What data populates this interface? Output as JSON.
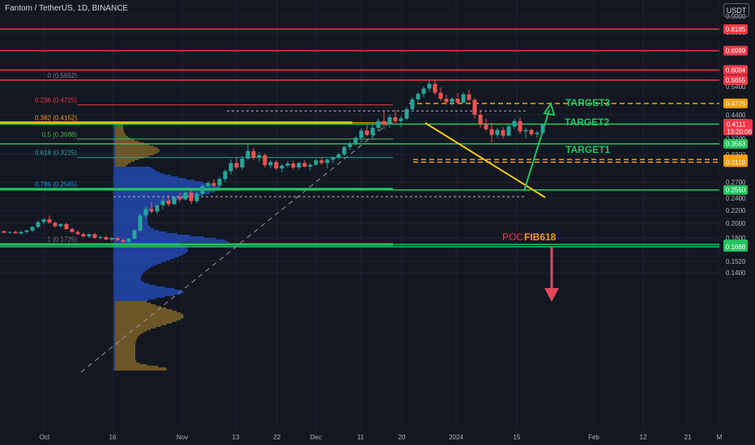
{
  "header": {
    "symbol": "Fantom / TetherUS, 1D, BINANCE",
    "currency": "USDT"
  },
  "chart_data": {
    "type": "candlestick",
    "y_scale": "log",
    "ylim": [
      0.135,
      0.93
    ],
    "y_ticks": [
      0.9,
      0.8,
      0.54,
      0.44,
      0.37,
      0.33,
      0.27,
      0.24,
      0.22,
      0.2,
      0.18,
      0.152,
      0.14
    ],
    "x_ticks": [
      "Oct",
      "16",
      "Nov",
      "13",
      "22",
      "Dec",
      "11",
      "20",
      "2024",
      "15",
      "Feb",
      "12",
      "21",
      "M"
    ],
    "last_price": {
      "value": "0.4111",
      "countdown": "13:20:06",
      "color": "#f23645"
    },
    "horizontal_levels": [
      {
        "value": 0.8185,
        "label": "0.8185",
        "color": "#f23645"
      },
      {
        "value": 0.6999,
        "label": "0.6999",
        "color": "#f23645"
      },
      {
        "value": 0.6084,
        "label": "0.6084",
        "color": "#f23645"
      },
      {
        "value": 0.5655,
        "label": "0.5655",
        "color": "#f23645"
      },
      {
        "value": 0.3563,
        "label": "0.3563",
        "color": "#22c55e"
      },
      {
        "value": 0.255,
        "label": "0.2550",
        "color": "#22c55e"
      },
      {
        "value": 0.1717,
        "label": "0.1717",
        "color": "#22c55e"
      },
      {
        "value": 0.1688,
        "label": "0.1688",
        "color": "#22c55e"
      }
    ],
    "dashed_levels": [
      {
        "value": 0.4775,
        "label": "0.4775",
        "color": "#f59e0b"
      },
      {
        "value": 0.318,
        "label": "0.3180",
        "color": "#f59e0b"
      },
      {
        "value": 0.3119,
        "label": "0.3119",
        "color": "#f59e0b"
      }
    ],
    "green_level": {
      "value": 0.4126,
      "label": "0.4126",
      "color": "#22c55e"
    },
    "fib_levels": [
      {
        "ratio": "0",
        "price": 0.5652,
        "label": "0 (0.5652)",
        "color": "#787b86"
      },
      {
        "ratio": "0.236",
        "price": 0.4725,
        "label": "0.236 (0.4725)",
        "color": "#f23645"
      },
      {
        "ratio": "0.382",
        "price": 0.4152,
        "label": "0.382 (0.4152)",
        "color": "#f59e0b"
      },
      {
        "ratio": "0.5",
        "price": 0.3688,
        "label": "0.5 (0.3688)",
        "color": "#4caf50"
      },
      {
        "ratio": "0.618",
        "price": 0.3225,
        "label": "0.618 (0.3225)",
        "color": "#26a69a"
      },
      {
        "ratio": "0.786",
        "price": 0.2565,
        "label": "0.786 (0.2565)",
        "color": "#2196f3"
      },
      {
        "ratio": "1",
        "price": 0.1725,
        "label": "1 (0.1725)",
        "color": "#787b86"
      }
    ],
    "annotations": {
      "target3": "TARGET3",
      "target2": "TARGET2",
      "target1": "TARGET1",
      "poc": "POC",
      "fib618": "FIB618"
    },
    "candles": [
      {
        "o": 0.188,
        "h": 0.191,
        "l": 0.185,
        "c": 0.189
      },
      {
        "o": 0.189,
        "h": 0.19,
        "l": 0.186,
        "c": 0.187
      },
      {
        "o": 0.187,
        "h": 0.189,
        "l": 0.185,
        "c": 0.188
      },
      {
        "o": 0.188,
        "h": 0.19,
        "l": 0.186,
        "c": 0.186
      },
      {
        "o": 0.186,
        "h": 0.189,
        "l": 0.184,
        "c": 0.188
      },
      {
        "o": 0.188,
        "h": 0.191,
        "l": 0.186,
        "c": 0.19
      },
      {
        "o": 0.19,
        "h": 0.196,
        "l": 0.188,
        "c": 0.195
      },
      {
        "o": 0.195,
        "h": 0.204,
        "l": 0.193,
        "c": 0.202
      },
      {
        "o": 0.202,
        "h": 0.208,
        "l": 0.199,
        "c": 0.206
      },
      {
        "o": 0.206,
        "h": 0.212,
        "l": 0.2,
        "c": 0.201
      },
      {
        "o": 0.201,
        "h": 0.203,
        "l": 0.194,
        "c": 0.196
      },
      {
        "o": 0.196,
        "h": 0.2,
        "l": 0.194,
        "c": 0.199
      },
      {
        "o": 0.199,
        "h": 0.201,
        "l": 0.191,
        "c": 0.192
      },
      {
        "o": 0.192,
        "h": 0.194,
        "l": 0.187,
        "c": 0.188
      },
      {
        "o": 0.188,
        "h": 0.19,
        "l": 0.184,
        "c": 0.185
      },
      {
        "o": 0.185,
        "h": 0.187,
        "l": 0.181,
        "c": 0.182
      },
      {
        "o": 0.182,
        "h": 0.186,
        "l": 0.18,
        "c": 0.185
      },
      {
        "o": 0.185,
        "h": 0.187,
        "l": 0.179,
        "c": 0.18
      },
      {
        "o": 0.18,
        "h": 0.183,
        "l": 0.178,
        "c": 0.181
      },
      {
        "o": 0.181,
        "h": 0.183,
        "l": 0.177,
        "c": 0.178
      },
      {
        "o": 0.178,
        "h": 0.181,
        "l": 0.176,
        "c": 0.18
      },
      {
        "o": 0.18,
        "h": 0.182,
        "l": 0.176,
        "c": 0.177
      },
      {
        "o": 0.177,
        "h": 0.179,
        "l": 0.173,
        "c": 0.175
      },
      {
        "o": 0.175,
        "h": 0.18,
        "l": 0.1725,
        "c": 0.179
      },
      {
        "o": 0.179,
        "h": 0.192,
        "l": 0.178,
        "c": 0.19
      },
      {
        "o": 0.19,
        "h": 0.215,
        "l": 0.188,
        "c": 0.212
      },
      {
        "o": 0.212,
        "h": 0.226,
        "l": 0.208,
        "c": 0.222
      },
      {
        "o": 0.222,
        "h": 0.234,
        "l": 0.215,
        "c": 0.218
      },
      {
        "o": 0.218,
        "h": 0.23,
        "l": 0.214,
        "c": 0.228
      },
      {
        "o": 0.228,
        "h": 0.24,
        "l": 0.222,
        "c": 0.236
      },
      {
        "o": 0.236,
        "h": 0.246,
        "l": 0.226,
        "c": 0.23
      },
      {
        "o": 0.23,
        "h": 0.244,
        "l": 0.228,
        "c": 0.242
      },
      {
        "o": 0.242,
        "h": 0.25,
        "l": 0.234,
        "c": 0.238
      },
      {
        "o": 0.238,
        "h": 0.252,
        "l": 0.236,
        "c": 0.25
      },
      {
        "o": 0.25,
        "h": 0.258,
        "l": 0.23,
        "c": 0.235
      },
      {
        "o": 0.235,
        "h": 0.252,
        "l": 0.232,
        "c": 0.248
      },
      {
        "o": 0.248,
        "h": 0.265,
        "l": 0.246,
        "c": 0.262
      },
      {
        "o": 0.262,
        "h": 0.272,
        "l": 0.256,
        "c": 0.268
      },
      {
        "o": 0.268,
        "h": 0.276,
        "l": 0.26,
        "c": 0.263
      },
      {
        "o": 0.263,
        "h": 0.28,
        "l": 0.258,
        "c": 0.276
      },
      {
        "o": 0.276,
        "h": 0.296,
        "l": 0.27,
        "c": 0.292
      },
      {
        "o": 0.292,
        "h": 0.318,
        "l": 0.285,
        "c": 0.31
      },
      {
        "o": 0.31,
        "h": 0.322,
        "l": 0.296,
        "c": 0.3
      },
      {
        "o": 0.3,
        "h": 0.326,
        "l": 0.296,
        "c": 0.32
      },
      {
        "o": 0.32,
        "h": 0.355,
        "l": 0.316,
        "c": 0.338
      },
      {
        "o": 0.338,
        "h": 0.346,
        "l": 0.316,
        "c": 0.322
      },
      {
        "o": 0.322,
        "h": 0.336,
        "l": 0.312,
        "c": 0.328
      },
      {
        "o": 0.328,
        "h": 0.332,
        "l": 0.3,
        "c": 0.305
      },
      {
        "o": 0.305,
        "h": 0.316,
        "l": 0.298,
        "c": 0.312
      },
      {
        "o": 0.312,
        "h": 0.316,
        "l": 0.294,
        "c": 0.298
      },
      {
        "o": 0.298,
        "h": 0.308,
        "l": 0.29,
        "c": 0.304
      },
      {
        "o": 0.304,
        "h": 0.314,
        "l": 0.3,
        "c": 0.309
      },
      {
        "o": 0.309,
        "h": 0.314,
        "l": 0.296,
        "c": 0.3
      },
      {
        "o": 0.3,
        "h": 0.312,
        "l": 0.296,
        "c": 0.31
      },
      {
        "o": 0.31,
        "h": 0.316,
        "l": 0.3,
        "c": 0.302
      },
      {
        "o": 0.302,
        "h": 0.31,
        "l": 0.294,
        "c": 0.306
      },
      {
        "o": 0.306,
        "h": 0.32,
        "l": 0.304,
        "c": 0.316
      },
      {
        "o": 0.316,
        "h": 0.322,
        "l": 0.306,
        "c": 0.31
      },
      {
        "o": 0.31,
        "h": 0.32,
        "l": 0.298,
        "c": 0.318
      },
      {
        "o": 0.318,
        "h": 0.326,
        "l": 0.31,
        "c": 0.322
      },
      {
        "o": 0.322,
        "h": 0.334,
        "l": 0.318,
        "c": 0.33
      },
      {
        "o": 0.33,
        "h": 0.352,
        "l": 0.326,
        "c": 0.348
      },
      {
        "o": 0.348,
        "h": 0.362,
        "l": 0.34,
        "c": 0.358
      },
      {
        "o": 0.358,
        "h": 0.376,
        "l": 0.352,
        "c": 0.372
      },
      {
        "o": 0.372,
        "h": 0.398,
        "l": 0.36,
        "c": 0.392
      },
      {
        "o": 0.392,
        "h": 0.41,
        "l": 0.376,
        "c": 0.38
      },
      {
        "o": 0.38,
        "h": 0.412,
        "l": 0.368,
        "c": 0.4
      },
      {
        "o": 0.4,
        "h": 0.428,
        "l": 0.39,
        "c": 0.42
      },
      {
        "o": 0.42,
        "h": 0.45,
        "l": 0.396,
        "c": 0.41
      },
      {
        "o": 0.41,
        "h": 0.44,
        "l": 0.4,
        "c": 0.432
      },
      {
        "o": 0.432,
        "h": 0.456,
        "l": 0.414,
        "c": 0.42
      },
      {
        "o": 0.42,
        "h": 0.436,
        "l": 0.402,
        "c": 0.428
      },
      {
        "o": 0.428,
        "h": 0.466,
        "l": 0.424,
        "c": 0.458
      },
      {
        "o": 0.458,
        "h": 0.5,
        "l": 0.45,
        "c": 0.492
      },
      {
        "o": 0.492,
        "h": 0.52,
        "l": 0.484,
        "c": 0.512
      },
      {
        "o": 0.512,
        "h": 0.54,
        "l": 0.5,
        "c": 0.532
      },
      {
        "o": 0.532,
        "h": 0.562,
        "l": 0.52,
        "c": 0.55
      },
      {
        "o": 0.55,
        "h": 0.566,
        "l": 0.508,
        "c": 0.516
      },
      {
        "o": 0.516,
        "h": 0.536,
        "l": 0.486,
        "c": 0.494
      },
      {
        "o": 0.494,
        "h": 0.508,
        "l": 0.472,
        "c": 0.482
      },
      {
        "o": 0.482,
        "h": 0.5,
        "l": 0.47,
        "c": 0.494
      },
      {
        "o": 0.494,
        "h": 0.514,
        "l": 0.476,
        "c": 0.48
      },
      {
        "o": 0.48,
        "h": 0.518,
        "l": 0.478,
        "c": 0.51
      },
      {
        "o": 0.51,
        "h": 0.528,
        "l": 0.484,
        "c": 0.49
      },
      {
        "o": 0.49,
        "h": 0.496,
        "l": 0.428,
        "c": 0.44
      },
      {
        "o": 0.44,
        "h": 0.456,
        "l": 0.4,
        "c": 0.41
      },
      {
        "o": 0.41,
        "h": 0.428,
        "l": 0.392,
        "c": 0.396
      },
      {
        "o": 0.396,
        "h": 0.416,
        "l": 0.36,
        "c": 0.38
      },
      {
        "o": 0.38,
        "h": 0.4,
        "l": 0.372,
        "c": 0.394
      },
      {
        "o": 0.394,
        "h": 0.402,
        "l": 0.37,
        "c": 0.378
      },
      {
        "o": 0.378,
        "h": 0.412,
        "l": 0.376,
        "c": 0.404
      },
      {
        "o": 0.404,
        "h": 0.426,
        "l": 0.396,
        "c": 0.42
      },
      {
        "o": 0.42,
        "h": 0.432,
        "l": 0.382,
        "c": 0.39
      },
      {
        "o": 0.39,
        "h": 0.4,
        "l": 0.372,
        "c": 0.394
      },
      {
        "o": 0.394,
        "h": 0.398,
        "l": 0.376,
        "c": 0.382
      },
      {
        "o": 0.382,
        "h": 0.392,
        "l": 0.372,
        "c": 0.386
      },
      {
        "o": 0.386,
        "h": 0.414,
        "l": 0.382,
        "c": 0.4111
      }
    ]
  }
}
